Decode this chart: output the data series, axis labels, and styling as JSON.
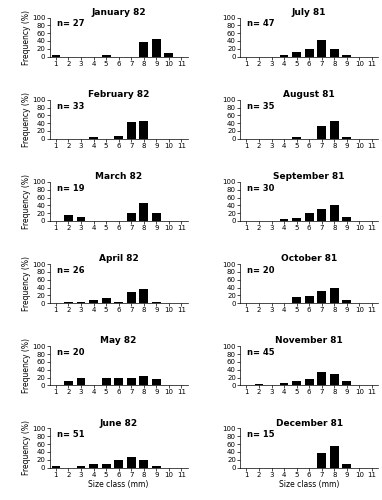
{
  "panels": [
    {
      "title": "January 82",
      "n": 27,
      "values": [
        4,
        0,
        0,
        0,
        4,
        0,
        0,
        37,
        45,
        10,
        0
      ]
    },
    {
      "title": "July 81",
      "n": 47,
      "values": [
        0,
        0,
        0,
        5,
        12,
        20,
        42,
        20,
        4,
        0,
        0
      ]
    },
    {
      "title": "February 82",
      "n": 33,
      "values": [
        0,
        0,
        0,
        5,
        0,
        8,
        42,
        45,
        0,
        0,
        0
      ]
    },
    {
      "title": "August 81",
      "n": 35,
      "values": [
        0,
        0,
        0,
        0,
        5,
        0,
        33,
        45,
        5,
        0,
        0
      ]
    },
    {
      "title": "March 82",
      "n": 19,
      "values": [
        0,
        15,
        10,
        0,
        0,
        0,
        20,
        45,
        20,
        0,
        0
      ]
    },
    {
      "title": "September 81",
      "n": 30,
      "values": [
        0,
        0,
        0,
        5,
        8,
        20,
        30,
        42,
        10,
        0,
        0
      ]
    },
    {
      "title": "April 82",
      "n": 26,
      "values": [
        0,
        4,
        4,
        8,
        12,
        4,
        28,
        35,
        4,
        0,
        0
      ]
    },
    {
      "title": "October 81",
      "n": 20,
      "values": [
        0,
        0,
        0,
        0,
        15,
        18,
        30,
        38,
        8,
        0,
        0
      ]
    },
    {
      "title": "May 82",
      "n": 20,
      "values": [
        0,
        10,
        18,
        0,
        18,
        18,
        20,
        25,
        15,
        0,
        0
      ]
    },
    {
      "title": "November 81",
      "n": 45,
      "values": [
        0,
        4,
        0,
        5,
        12,
        15,
        35,
        30,
        12,
        0,
        0
      ]
    },
    {
      "title": "June 82",
      "n": 51,
      "values": [
        3,
        0,
        5,
        8,
        8,
        20,
        28,
        18,
        3,
        0,
        0
      ]
    },
    {
      "title": "December 81",
      "n": 15,
      "values": [
        0,
        0,
        0,
        0,
        0,
        0,
        38,
        55,
        10,
        0,
        0
      ]
    }
  ],
  "x_labels": [
    1,
    2,
    3,
    4,
    5,
    6,
    7,
    8,
    9,
    10,
    11
  ],
  "bar_color": "black",
  "ylabel": "Frequency (%)",
  "xlabel": "Size class (mm)",
  "ylim": [
    0,
    100
  ],
  "yticks": [
    0,
    20,
    40,
    60,
    80,
    100
  ],
  "title_fontsize": 6.5,
  "label_fontsize": 5.5,
  "tick_fontsize": 5.0,
  "n_fontsize": 6.0
}
